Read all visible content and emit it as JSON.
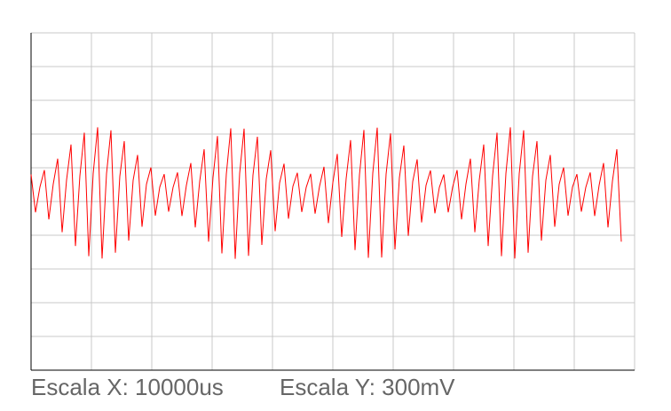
{
  "chart_data": {
    "type": "line",
    "scale_x_label": "Escala X: 10000us",
    "scale_y_label": "Escala Y: 300mV",
    "series": [
      {
        "color": "#ff0000",
        "values": [
          0.8,
          -0.32,
          0.43,
          0.93,
          -0.53,
          0.52,
          1.27,
          -0.91,
          0.64,
          1.69,
          -1.32,
          0.76,
          2.04,
          -1.62,
          0.83,
          2.2,
          -1.69,
          0.82,
          2.11,
          -1.52,
          0.75,
          1.79,
          -1.16,
          0.63,
          1.38,
          -0.75,
          0.51,
          1.01,
          -0.42,
          0.43,
          0.81,
          -0.3,
          0.42,
          0.86,
          -0.43,
          0.48,
          1.14,
          -0.77,
          0.6,
          1.55,
          -1.19,
          0.72,
          1.94,
          -1.54,
          0.81,
          2.17,
          -1.7,
          0.83,
          2.16,
          -1.61,
          0.78,
          1.92,
          -1.29,
          0.67,
          1.52,
          -0.88,
          0.55,
          1.12,
          -0.51,
          0.45,
          0.85,
          -0.31,
          0.42,
          0.82,
          -0.36,
          0.45,
          1.03,
          -0.64,
          0.56,
          1.41,
          -1.05,
          0.68,
          1.82,
          -1.44,
          0.79,
          2.12,
          -1.67,
          0.84,
          2.19,
          -1.66,
          0.81,
          2.02,
          -1.42,
          0.71,
          1.66,
          -1.02,
          0.59,
          1.25,
          -0.62,
          0.48,
          0.92,
          -0.35,
          0.42,
          0.8,
          -0.32,
          0.43,
          0.93,
          -0.53,
          0.52,
          1.27,
          -0.91,
          0.64,
          1.69,
          -1.32,
          0.76,
          2.04,
          -1.62,
          0.83,
          2.2,
          -1.69,
          0.82,
          2.11,
          -1.52,
          0.75,
          1.79,
          -1.16,
          0.63,
          1.38,
          -0.75,
          0.51,
          1.01,
          -0.42,
          0.43,
          0.81,
          -0.3,
          0.42,
          0.86,
          -0.43,
          0.48,
          1.14,
          -0.77,
          0.6,
          1.55,
          -1.19
        ]
      }
    ],
    "ylim": [
      -5,
      5
    ],
    "yticks": [
      -5,
      -4,
      -3,
      -2,
      -1,
      0,
      1,
      2,
      3,
      4,
      5
    ],
    "grid": true
  }
}
